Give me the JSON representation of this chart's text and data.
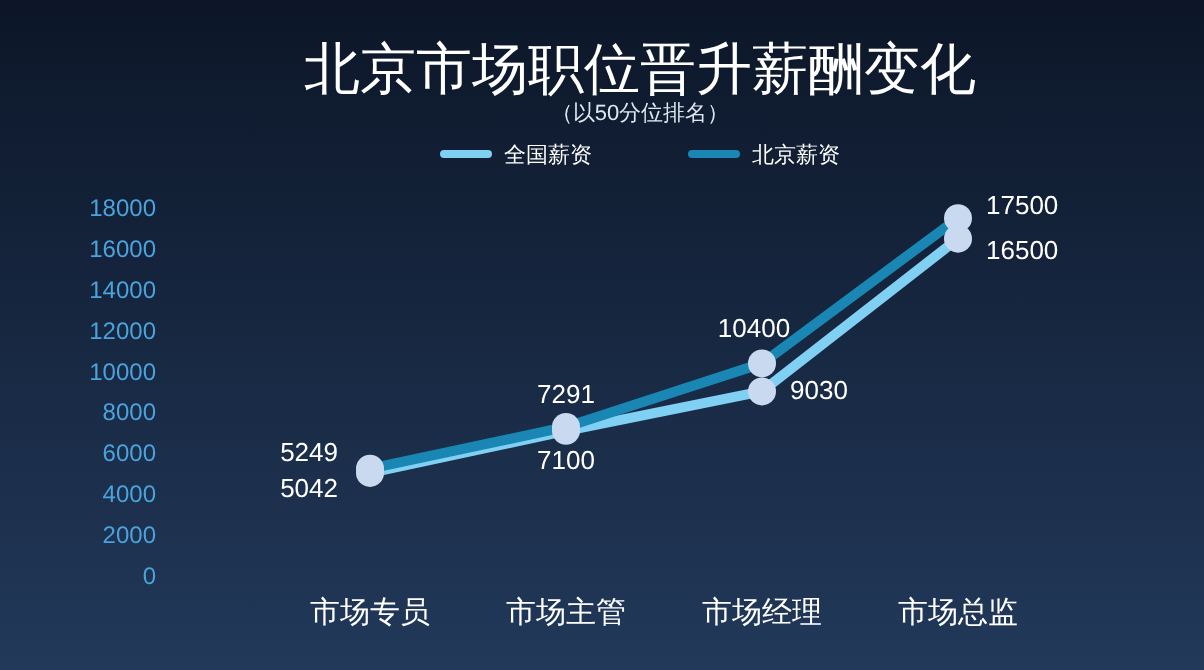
{
  "chart_data": {
    "type": "line",
    "title": "北京市场职位晋升薪酬变化",
    "subtitle": "（以50分位排名）",
    "categories": [
      "市场专员",
      "市场主管",
      "市场经理",
      "市场总监"
    ],
    "series": [
      {
        "name": "全国薪资",
        "color": "#7fd0f2",
        "values": [
          5042,
          7100,
          9030,
          16500
        ]
      },
      {
        "name": "北京薪资",
        "color": "#1a86b4",
        "values": [
          5249,
          7291,
          10400,
          17500
        ]
      }
    ],
    "ylim": [
      0,
      18000
    ],
    "yticks": [
      0,
      2000,
      4000,
      6000,
      8000,
      10000,
      12000,
      14000,
      16000,
      18000
    ],
    "grid": false,
    "legend": "top",
    "marker": "circle",
    "line_style": "solid",
    "data_labels": true
  }
}
